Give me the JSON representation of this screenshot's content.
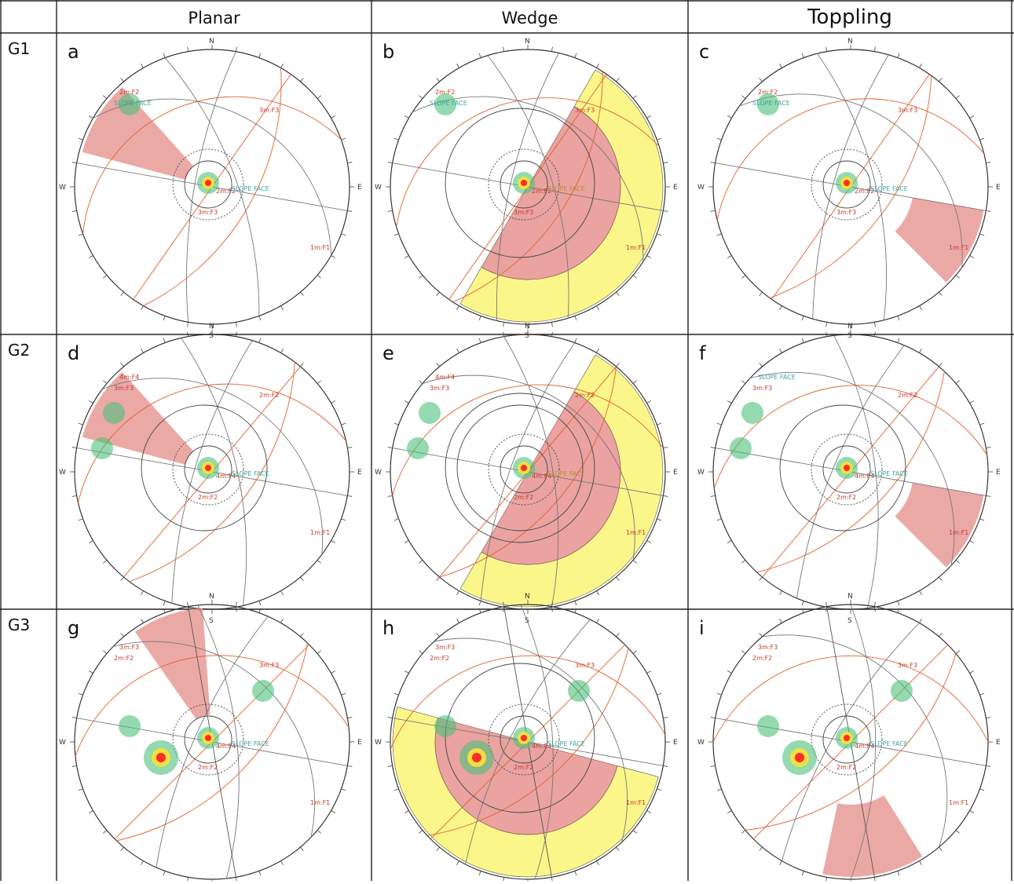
{
  "columns": [
    "Planar",
    "Wedge",
    "Toppling"
  ],
  "rows": [
    {
      "label": "G1",
      "panels": [
        {
          "letter": "a",
          "kind": "planar",
          "sets": [
            {
              "label": "2m:F2",
              "c": "#c0392b"
            },
            {
              "label": "SLOPE FACE",
              "c": "#3aa6a0"
            },
            {
              "label": "3m:F3",
              "c": "#c0392b"
            },
            {
              "label": "1m:F1",
              "c": "#c0392b"
            },
            {
              "label": "2m:F2",
              "c": "#c0392b"
            },
            {
              "label": "3m:F3",
              "c": "#c0392b"
            },
            {
              "label": "SLOPE FACE",
              "c": "#3aa6a0"
            }
          ]
        },
        {
          "letter": "b",
          "kind": "wedge",
          "sets": [
            {
              "label": "2m:F2",
              "c": "#c0392b"
            },
            {
              "label": "SLOPE FACE",
              "c": "#3aa6a0"
            },
            {
              "label": "3m:F3",
              "c": "#c0392b"
            },
            {
              "label": "1m:F1",
              "c": "#c0392b"
            },
            {
              "label": "2m:F2",
              "c": "#c0392b"
            },
            {
              "label": "3m:F3",
              "c": "#c0392b"
            },
            {
              "label": "SLOPE FACE",
              "c": "#c08a3a"
            }
          ]
        },
        {
          "letter": "c",
          "kind": "toppling",
          "sets": [
            {
              "label": "2m:F2",
              "c": "#c0392b"
            },
            {
              "label": "SLOPE FACE",
              "c": "#3aa6a0"
            },
            {
              "label": "3m:F3",
              "c": "#c0392b"
            },
            {
              "label": "1m:F1",
              "c": "#c0392b"
            },
            {
              "label": "2m:F2",
              "c": "#c0392b"
            },
            {
              "label": "3m:F3",
              "c": "#c0392b"
            },
            {
              "label": "SLOPE FACE",
              "c": "#3aa6a0"
            }
          ]
        }
      ]
    },
    {
      "label": "G2",
      "panels": [
        {
          "letter": "d",
          "kind": "planar",
          "sets": [
            {
              "label": "4m:F4",
              "c": "#c0392b"
            },
            {
              "label": "3m:F3",
              "c": "#c0392b"
            },
            {
              "label": "2m:F2",
              "c": "#c0392b"
            },
            {
              "label": "1m:F1",
              "c": "#c0392b"
            },
            {
              "label": "4m:F4",
              "c": "#c0392b"
            },
            {
              "label": "2m:F2",
              "c": "#c0392b"
            },
            {
              "label": "SLOPE FACE",
              "c": "#3aa6a0"
            }
          ]
        },
        {
          "letter": "e",
          "kind": "wedge",
          "sets": [
            {
              "label": "4m:F4",
              "c": "#c0392b"
            },
            {
              "label": "3m:F3",
              "c": "#c0392b"
            },
            {
              "label": "2m:F2",
              "c": "#c0392b"
            },
            {
              "label": "1m:F1",
              "c": "#c0392b"
            },
            {
              "label": "4m:F4",
              "c": "#c0392b"
            },
            {
              "label": "2m:F2",
              "c": "#c0392b"
            },
            {
              "label": "SLOPE FACE",
              "c": "#c08a3a"
            }
          ]
        },
        {
          "letter": "f",
          "kind": "toppling",
          "sets": [
            {
              "label": "SLOPE FACE",
              "c": "#3aa6a0"
            },
            {
              "label": "3m:F3",
              "c": "#c0392b"
            },
            {
              "label": "2m:F2",
              "c": "#c0392b"
            },
            {
              "label": "1m:F1",
              "c": "#c0392b"
            },
            {
              "label": "4m:F4",
              "c": "#c0392b"
            },
            {
              "label": "2m:F2",
              "c": "#c0392b"
            },
            {
              "label": "SLOPE FACE",
              "c": "#3aa6a0"
            }
          ]
        }
      ]
    },
    {
      "label": "G3",
      "panels": [
        {
          "letter": "g",
          "kind": "planar",
          "sets": [
            {
              "label": "3m:F3",
              "c": "#c0392b"
            },
            {
              "label": "2m:F2",
              "c": "#c0392b"
            },
            {
              "label": "3m:F3",
              "c": "#c0392b"
            },
            {
              "label": "1m:F1",
              "c": "#c0392b"
            },
            {
              "label": "4m:F4",
              "c": "#c0392b"
            },
            {
              "label": "2m:F2",
              "c": "#c0392b"
            },
            {
              "label": "SLOPE FACE",
              "c": "#3aa6a0"
            }
          ]
        },
        {
          "letter": "h",
          "kind": "wedge",
          "sets": [
            {
              "label": "3m:F3",
              "c": "#c0392b"
            },
            {
              "label": "2m:F2",
              "c": "#c0392b"
            },
            {
              "label": "3m:F3",
              "c": "#c0392b"
            },
            {
              "label": "1m:F1",
              "c": "#c0392b"
            },
            {
              "label": "4m:F4",
              "c": "#c0392b"
            },
            {
              "label": "2m:F2",
              "c": "#c0392b"
            },
            {
              "label": "SLOPE FACE",
              "c": "#3aa6a0"
            }
          ]
        },
        {
          "letter": "i",
          "kind": "toppling",
          "sets": [
            {
              "label": "3m:F3",
              "c": "#c0392b"
            },
            {
              "label": "2m:F2",
              "c": "#c0392b"
            },
            {
              "label": "3m F3",
              "c": "#c0392b"
            },
            {
              "label": "1m:F1",
              "c": "#c0392b"
            },
            {
              "label": "4m:F4",
              "c": "#c0392b"
            },
            {
              "label": "2m:F2",
              "c": "#c0392b"
            },
            {
              "label": "SLOPE FACE",
              "c": "#3aa6a0"
            }
          ]
        }
      ]
    }
  ],
  "compass": {
    "n": "N",
    "e": "E",
    "s": "S",
    "w": "W"
  },
  "colors": {
    "critical_zone": "#e89a96",
    "wedge_band": "#fbf68a",
    "great_circle": "#e2602f",
    "grid_line": "#555555",
    "pole_hot": "#ff2a2a",
    "pole_warm": "#f5e23a",
    "pole_cool": "#4cc07a"
  }
}
